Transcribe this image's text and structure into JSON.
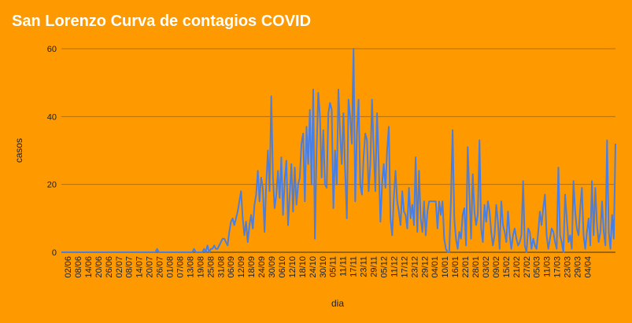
{
  "chart_data": {
    "type": "line",
    "title": "San Lorenzo Curva de contagios COVID",
    "xlabel": "dia",
    "ylabel": "casos",
    "ylim": [
      0,
      60
    ],
    "yticks": [
      "0",
      "20",
      "40",
      "60"
    ],
    "grid": true,
    "legend": "none",
    "colors": {
      "background": "#FF9900",
      "line": "#4A7FE0",
      "grid": "#B86E00",
      "title": "#FFFFFF"
    },
    "x_tick_labels": [
      "02/06",
      "08/06",
      "14/06",
      "20/06",
      "26/06",
      "02/07",
      "08/07",
      "14/07",
      "20/07",
      "26/07",
      "01/08",
      "07/08",
      "13/08",
      "19/08",
      "25/08",
      "31/08",
      "06/09",
      "12/09",
      "18/09",
      "24/09",
      "30/09",
      "06/10",
      "12/10",
      "18/10",
      "24/10",
      "30/10",
      "05/11",
      "11/11",
      "17/11",
      "23/11",
      "29/11",
      "05/12",
      "11/12",
      "17/12",
      "23/12",
      "29/12",
      "04/01",
      "10/01",
      "16/01",
      "22/01",
      "28/01",
      "03/02",
      "09/02",
      "15/02",
      "21/02",
      "27/02",
      "05/03",
      "11/03",
      "17/03",
      "23/03",
      "29/03",
      "04/04"
    ],
    "series": [
      {
        "values": [
          0,
          0,
          0,
          0,
          0,
          0,
          0,
          0,
          0,
          0,
          0,
          0,
          0,
          0,
          0,
          0,
          0,
          0,
          0,
          0,
          0,
          0,
          0,
          0,
          0,
          0,
          0,
          0,
          0,
          0,
          0,
          0,
          0,
          0,
          0,
          0,
          0,
          0,
          0,
          0,
          0,
          0,
          0,
          0,
          0,
          0,
          0,
          0,
          0,
          0,
          0,
          0,
          0,
          0,
          0,
          0,
          0,
          1,
          0,
          0,
          0,
          0,
          0,
          0,
          0,
          0,
          0,
          0,
          0,
          0,
          0,
          0,
          0,
          0,
          0,
          0,
          0,
          0,
          0,
          1,
          0,
          0,
          0,
          0,
          0,
          1,
          0,
          2,
          0,
          1,
          1,
          2,
          1,
          1,
          2,
          3,
          4,
          4,
          3,
          2,
          6,
          9,
          10,
          8,
          10,
          12,
          15,
          18,
          10,
          5,
          9,
          3,
          8,
          11,
          7,
          14,
          17,
          24,
          15,
          22,
          19,
          6,
          20,
          30,
          18,
          46,
          22,
          13,
          17,
          24,
          16,
          28,
          11,
          21,
          27,
          8,
          17,
          26,
          12,
          25,
          14,
          20,
          22,
          32,
          35,
          15,
          37,
          26,
          42,
          20,
          48,
          4,
          30,
          47,
          40,
          22,
          36,
          20,
          19,
          41,
          44,
          42,
          13,
          30,
          20,
          48,
          35,
          26,
          41,
          24,
          10,
          45,
          40,
          32,
          60,
          15,
          35,
          45,
          20,
          17,
          28,
          35,
          33,
          18,
          26,
          45,
          30,
          18,
          41,
          26,
          9,
          20,
          26,
          19,
          30,
          37,
          10,
          5,
          16,
          24,
          15,
          12,
          8,
          18,
          12,
          11,
          7,
          19,
          10,
          14,
          8,
          28,
          6,
          24,
          10,
          6,
          15,
          5,
          12,
          15,
          15,
          15,
          15,
          15,
          7,
          15,
          11,
          15,
          4,
          1,
          0,
          0,
          15,
          36,
          10,
          4,
          1,
          6,
          4,
          11,
          13,
          2,
          31,
          17,
          4,
          23,
          12,
          8,
          11,
          33,
          7,
          3,
          14,
          9,
          15,
          12,
          6,
          2,
          5,
          14,
          9,
          1,
          15,
          8,
          6,
          3,
          12,
          5,
          1,
          5,
          7,
          4,
          2,
          3,
          5,
          21,
          2,
          0,
          7,
          6,
          1,
          4,
          2,
          1,
          6,
          12,
          8,
          13,
          17,
          5,
          1,
          4,
          7,
          6,
          3,
          1,
          25,
          5,
          3,
          0,
          17,
          10,
          3,
          5,
          1,
          21,
          12,
          7,
          5,
          13,
          19,
          5,
          1,
          6,
          10,
          2,
          21,
          5,
          19,
          8,
          3,
          6,
          15,
          6,
          2,
          33,
          6,
          1,
          11,
          4,
          32
        ]
      }
    ]
  }
}
